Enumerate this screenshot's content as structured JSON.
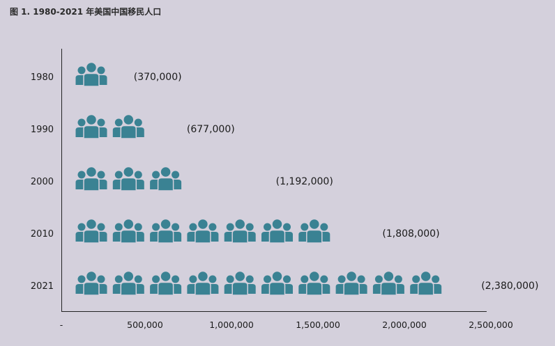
{
  "chart_data": {
    "type": "bar",
    "style": "pictograph",
    "title": "图 1. 1980-2021 年美国中国移民人口",
    "categories": [
      "1980",
      "1990",
      "2000",
      "2010",
      "2021"
    ],
    "values": [
      370000,
      677000,
      1192000,
      1808000,
      2380000
    ],
    "data_labels": [
      "(370,000)",
      "(677,000)",
      "(1,192,000)",
      "(1,808,000)",
      "(2,380,000)"
    ],
    "icon_counts": [
      1,
      2,
      3,
      7,
      10
    ],
    "xlim": [
      0,
      2500000
    ],
    "xticks": [
      {
        "value": 0,
        "label": "-"
      },
      {
        "value": 500000,
        "label": "500,000"
      },
      {
        "value": 1000000,
        "label": "1,000,000"
      },
      {
        "value": 1500000,
        "label": "1,500,000"
      },
      {
        "value": 2000000,
        "label": "2,000,000"
      },
      {
        "value": 2500000,
        "label": "2,500,000"
      }
    ],
    "icon": "people-group-icon",
    "icon_color": "#3a8293",
    "grid": false
  }
}
